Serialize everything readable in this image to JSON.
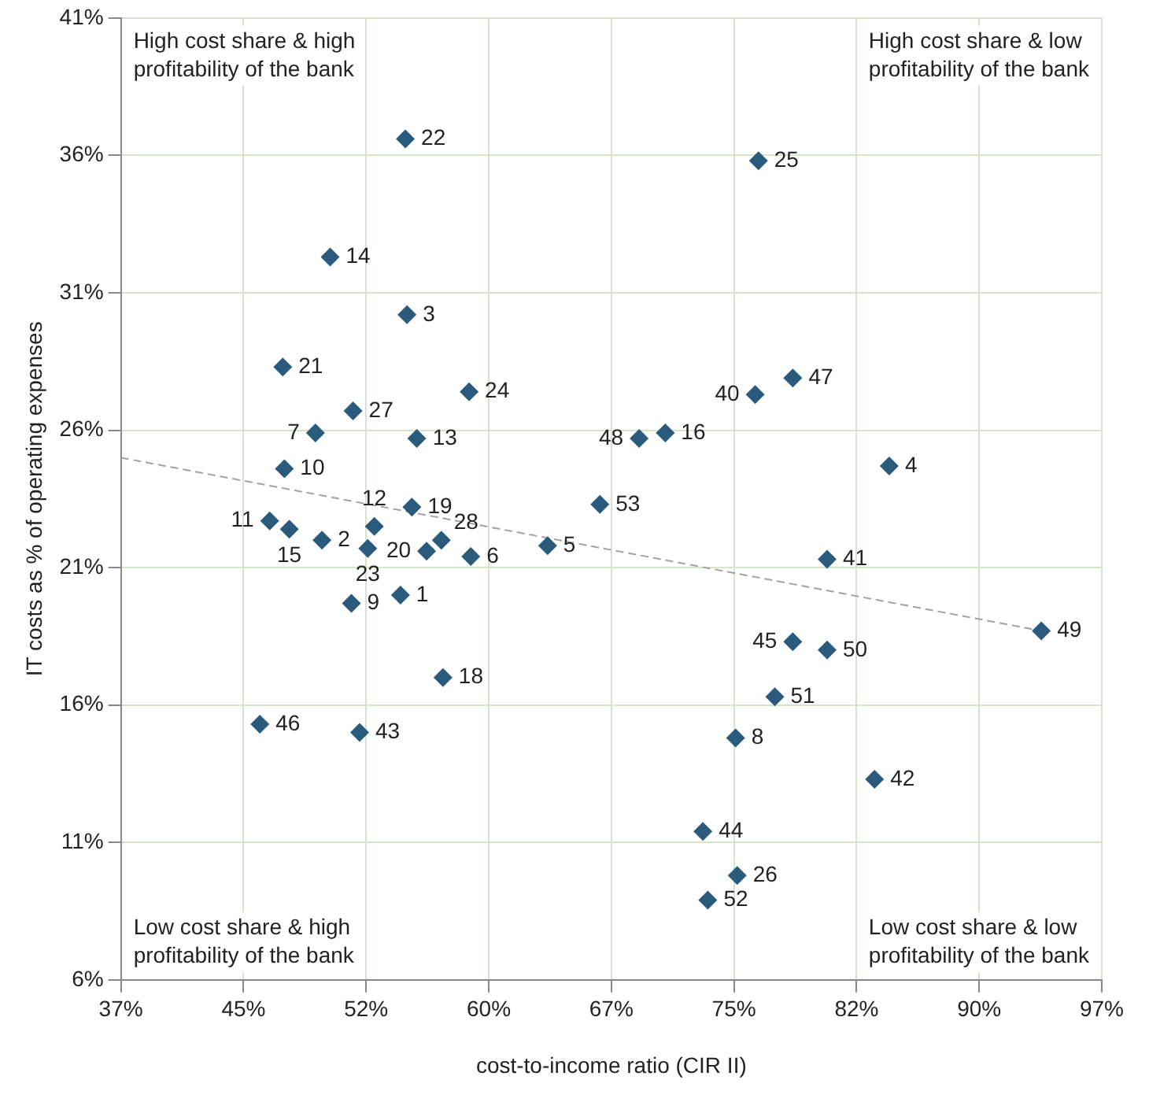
{
  "chart_data": {
    "type": "scatter",
    "xlabel": "cost-to-income ratio (CIR II)",
    "ylabel": "IT costs as % of operating expenses",
    "annotations": [
      "High cost share & high profitability of the bank",
      "High cost share & low profitability of the bank",
      "Low cost share & high profitability of the bank",
      "Low cost share & low profitability of the bank",
      {
        "text": "22",
        "x": 54.4,
        "y": 36.6
      },
      {
        "text": "14",
        "x": 49.8,
        "y": 32.3
      },
      {
        "text": "3",
        "x": 54.5,
        "y": 30.2
      },
      {
        "text": "21",
        "x": 46.9,
        "y": 28.3
      },
      {
        "text": "24",
        "x": 58.3,
        "y": 27.4
      },
      {
        "text": "27",
        "x": 51.2,
        "y": 26.7
      },
      {
        "text": "7",
        "x": 48.9,
        "y": 25.9
      },
      {
        "text": "13",
        "x": 55.1,
        "y": 25.7
      },
      {
        "text": "10",
        "x": 47.0,
        "y": 24.6
      },
      {
        "text": "19",
        "x": 54.8,
        "y": 23.2
      },
      {
        "text": "11",
        "x": 46.1,
        "y": 22.7
      },
      {
        "text": "15",
        "x": 47.3,
        "y": 22.4
      },
      {
        "text": "2",
        "x": 49.3,
        "y": 22.0
      },
      {
        "text": "12",
        "x": 52.5,
        "y": 22.5
      },
      {
        "text": "23",
        "x": 52.1,
        "y": 21.7
      },
      {
        "text": "28",
        "x": 56.6,
        "y": 22.0
      },
      {
        "text": "20",
        "x": 55.7,
        "y": 21.6
      },
      {
        "text": "6",
        "x": 58.4,
        "y": 21.4
      },
      {
        "text": "9",
        "x": 51.1,
        "y": 19.7
      },
      {
        "text": "1",
        "x": 54.1,
        "y": 20.0
      },
      {
        "text": "18",
        "x": 56.7,
        "y": 17.0
      },
      {
        "text": "46",
        "x": 45.5,
        "y": 15.3
      },
      {
        "text": "43",
        "x": 51.6,
        "y": 15.0
      },
      {
        "text": "25",
        "x": 76.0,
        "y": 35.8
      },
      {
        "text": "47",
        "x": 78.1,
        "y": 27.9
      },
      {
        "text": "40",
        "x": 75.8,
        "y": 27.3
      },
      {
        "text": "48",
        "x": 68.7,
        "y": 25.7
      },
      {
        "text": "16",
        "x": 70.3,
        "y": 25.9
      },
      {
        "text": "4",
        "x": 84.0,
        "y": 24.7
      },
      {
        "text": "53",
        "x": 66.3,
        "y": 23.3
      },
      {
        "text": "5",
        "x": 63.1,
        "y": 21.8
      },
      {
        "text": "41",
        "x": 80.2,
        "y": 21.3
      },
      {
        "text": "49",
        "x": 93.3,
        "y": 18.7
      },
      {
        "text": "45",
        "x": 78.1,
        "y": 18.3
      },
      {
        "text": "50",
        "x": 80.2,
        "y": 18.0
      },
      {
        "text": "51",
        "x": 77.0,
        "y": 16.3
      },
      {
        "text": "8",
        "x": 74.6,
        "y": 14.8
      },
      {
        "text": "42",
        "x": 83.1,
        "y": 13.3
      },
      {
        "text": "44",
        "x": 72.6,
        "y": 11.4
      },
      {
        "text": "26",
        "x": 74.7,
        "y": 9.8
      },
      {
        "text": "52",
        "x": 72.9,
        "y": 8.9
      }
    ],
    "xlim": [
      37,
      97
    ],
    "xticks": [
      {
        "value": 37,
        "label": "37%"
      },
      {
        "value": 44.5,
        "label": "45%"
      },
      {
        "value": 52,
        "label": "52%"
      },
      {
        "value": 59.5,
        "label": "60%"
      },
      {
        "value": 67,
        "label": "67%"
      },
      {
        "value": 74.5,
        "label": "75%"
      },
      {
        "value": 82,
        "label": "82%"
      },
      {
        "value": 89.5,
        "label": "90%"
      },
      {
        "value": 97,
        "label": "97%"
      }
    ],
    "ylim": [
      6,
      41
    ],
    "yticks": [
      {
        "value": 6,
        "label": "6%"
      },
      {
        "value": 11,
        "label": "11%"
      },
      {
        "value": 16,
        "label": "16%"
      },
      {
        "value": 21,
        "label": "21%"
      },
      {
        "value": 26,
        "label": "26%"
      },
      {
        "value": 31,
        "label": "31%"
      },
      {
        "value": 36,
        "label": "36%"
      },
      {
        "value": 41,
        "label": "41%"
      }
    ],
    "grid": true,
    "legend": false,
    "marker": "diamond",
    "series": [
      {
        "color": "#2a5b7c",
        "x": [
          54.4,
          49.8,
          54.5,
          46.9,
          58.3,
          51.2,
          48.9,
          55.1,
          47.0,
          54.8,
          46.1,
          47.3,
          49.3,
          52.5,
          52.1,
          56.6,
          55.7,
          58.4,
          51.1,
          54.1,
          56.7,
          45.5,
          51.6,
          76.0,
          78.1,
          75.8,
          68.7,
          70.3,
          84.0,
          66.3,
          63.1,
          80.2,
          93.3,
          78.1,
          80.2,
          77.0,
          74.6,
          83.1,
          72.6,
          74.7,
          72.9
        ],
        "values": [
          36.6,
          32.3,
          30.2,
          28.3,
          27.4,
          26.7,
          25.9,
          25.7,
          24.6,
          23.2,
          22.7,
          22.4,
          22.0,
          22.5,
          21.7,
          22.0,
          21.6,
          21.4,
          19.7,
          20.0,
          17.0,
          15.3,
          15.0,
          35.8,
          27.9,
          27.3,
          25.7,
          25.9,
          24.7,
          23.3,
          21.8,
          21.3,
          18.7,
          18.3,
          18.0,
          16.3,
          14.8,
          13.3,
          11.4,
          9.8,
          8.9
        ]
      },
      {
        "type": "line",
        "color": "#a8a0a0",
        "line_style": "dashed",
        "marker": "none",
        "x": [
          37,
          93.3
        ],
        "values": [
          25.0,
          18.7
        ]
      }
    ]
  }
}
